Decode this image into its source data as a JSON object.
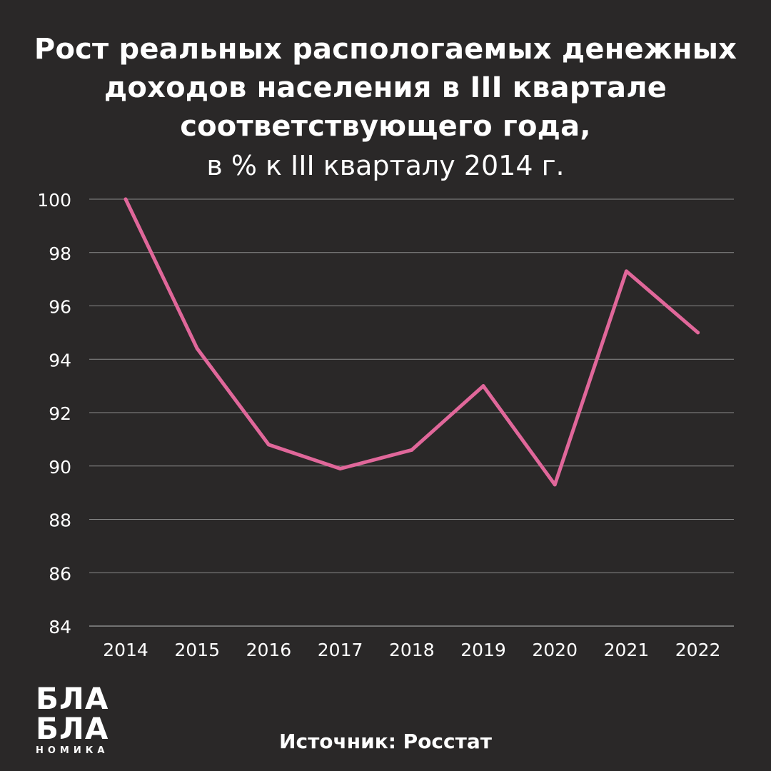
{
  "header": {
    "title_lines": [
      "Рост реальных распологаемых денежных",
      "доходов населения в III квартале",
      "соответствующего года,"
    ],
    "subtitle": "в % к III кварталу 2014 г."
  },
  "logo": {
    "line1": "БЛА",
    "line2": "БЛА",
    "line3": "НОМИКА"
  },
  "footer": {
    "source": "Источник: Росстат"
  },
  "colors": {
    "background": "#2a2828",
    "line": "#e0679a",
    "grid": "#8a8a8a",
    "text": "#ffffff"
  },
  "chart_data": {
    "type": "line",
    "x": [
      "2014",
      "2015",
      "2016",
      "2017",
      "2018",
      "2019",
      "2020",
      "2021",
      "2022"
    ],
    "series": [
      {
        "values": [
          100.0,
          94.4,
          90.8,
          89.9,
          90.6,
          93.0,
          89.3,
          97.3,
          95.0
        ]
      }
    ],
    "yticks": [
      84,
      86,
      88,
      90,
      92,
      94,
      96,
      98,
      100
    ],
    "ylim": [
      84,
      100
    ],
    "grid": true,
    "legend": "none"
  }
}
